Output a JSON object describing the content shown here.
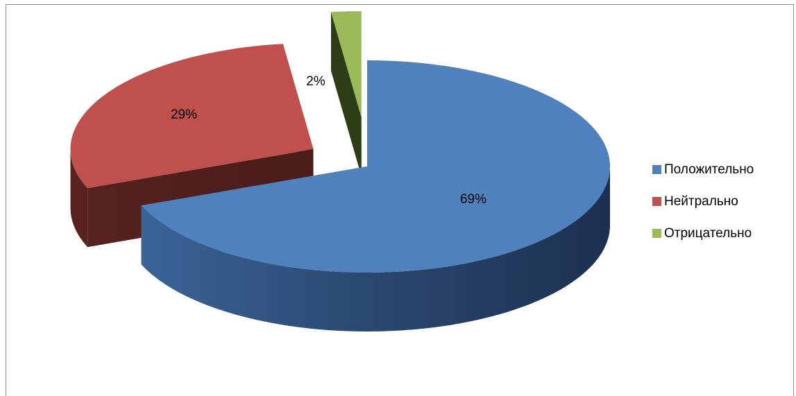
{
  "chart_data": {
    "type": "pie",
    "style": "3d-exploded",
    "title": "",
    "legend_position": "right",
    "slices": [
      {
        "name": "Положительно",
        "value": 69,
        "label": "69%",
        "color": "#4f81bd"
      },
      {
        "name": "Нейтрально",
        "value": 29,
        "label": "29%",
        "color": "#c0504d"
      },
      {
        "name": "Отрицательно",
        "value": 2,
        "label": "2%",
        "color": "#9bbb59"
      }
    ]
  }
}
